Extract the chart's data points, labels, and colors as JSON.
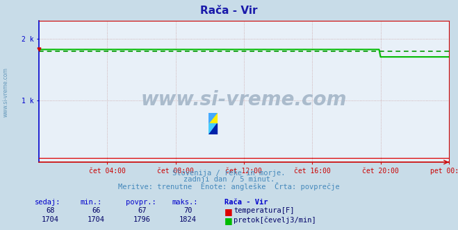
{
  "title": "Rača - Vir",
  "title_color": "#1a1aaa",
  "bg_color": "#c8dce8",
  "plot_bg_color": "#e8f0f8",
  "grid_color": "#c8a0a0",
  "left_spine_color": "#0000cc",
  "bottom_spine_color": "#cc0000",
  "tick_label_color": "#0000aa",
  "x_tick_labels": [
    "čet 04:00",
    "čet 08:00",
    "čet 12:00",
    "čet 16:00",
    "čet 20:00",
    "pet 00:00"
  ],
  "x_tick_positions": [
    48,
    96,
    144,
    192,
    240,
    288
  ],
  "y_tick_labels": [
    "1 k",
    "2 k"
  ],
  "y_tick_positions": [
    1000,
    2000
  ],
  "ylim": [
    0,
    2290
  ],
  "xlim": [
    0,
    288
  ],
  "n_points": 289,
  "temp_color": "#dd0000",
  "flow_color": "#00bb00",
  "avg_color": "#009900",
  "temp_value": 68,
  "flow_drop_index": 240,
  "flow_value_before": 1824,
  "flow_value_after": 1704,
  "avg_value": 1796,
  "subtitle1": "Slovenija / reke in morje.",
  "subtitle2": "zadnji dan / 5 minut.",
  "subtitle3": "Meritve: trenutne  Enote: angleške  Črta: povprečje",
  "subtitle_color": "#4488bb",
  "table_header_color": "#0000cc",
  "table_header": [
    "sedaj:",
    "min.:",
    "povpr.:",
    "maks.:",
    "Rača - Vir"
  ],
  "row1": [
    "68",
    "66",
    "67",
    "70"
  ],
  "row2": [
    "1704",
    "1704",
    "1796",
    "1824"
  ],
  "row_color": "#000066",
  "label1": "temperatura[F]",
  "label2": "pretok[čevelj3/min]",
  "watermark_text": "www.si-vreme.com",
  "watermark_color": "#aabbcc",
  "side_text": "www.si-vreme.com",
  "side_text_color": "#6699bb"
}
